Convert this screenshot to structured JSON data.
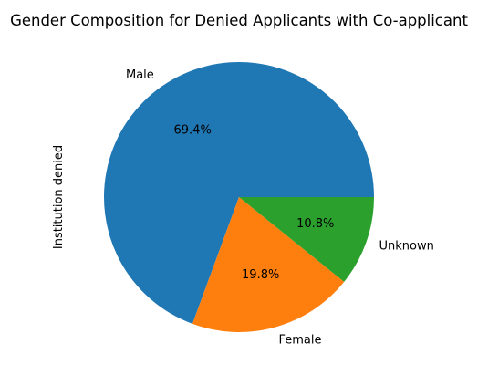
{
  "chart_data": {
    "type": "pie",
    "title": "Gender Composition for Denied Applicants with Co-applicant",
    "ylabel": "Institution denied",
    "categories": [
      "Male",
      "Female",
      "Unknown"
    ],
    "values": [
      69.4,
      19.8,
      10.8
    ],
    "percent_labels": [
      "69.4%",
      "19.8%",
      "10.8%"
    ],
    "colors": [
      "#1f77b4",
      "#ff7f0e",
      "#2ca02c"
    ],
    "start_angle_deg": 0,
    "direction": "counterclockwise"
  }
}
